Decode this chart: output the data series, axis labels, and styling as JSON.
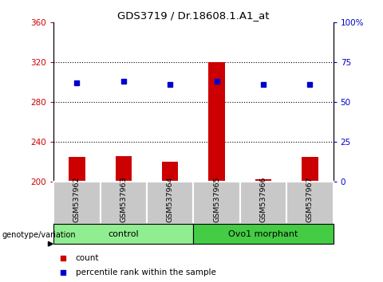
{
  "title": "GDS3719 / Dr.18608.1.A1_at",
  "samples": [
    "GSM537962",
    "GSM537963",
    "GSM537964",
    "GSM537965",
    "GSM537966",
    "GSM537967"
  ],
  "bar_values": [
    225,
    226,
    220,
    320,
    203,
    225
  ],
  "dot_values": [
    62,
    63,
    61,
    63,
    61,
    61
  ],
  "ylim_left": [
    200,
    360
  ],
  "ylim_right": [
    0,
    100
  ],
  "yticks_left": [
    200,
    240,
    280,
    320,
    360
  ],
  "yticks_right": [
    0,
    25,
    50,
    75,
    100
  ],
  "ytick_labels_right": [
    "0",
    "25",
    "50",
    "75",
    "100%"
  ],
  "bar_color": "#cc0000",
  "dot_color": "#0000cc",
  "bar_width": 0.35,
  "left_tick_color": "#cc0000",
  "right_tick_color": "#0000cc",
  "tick_area_color": "#c8c8c8",
  "control_color": "#90ee90",
  "morphant_color": "#44cc44",
  "legend_count_label": "count",
  "legend_pct_label": "percentile rank within the sample",
  "genotype_label": "genotype/variation"
}
